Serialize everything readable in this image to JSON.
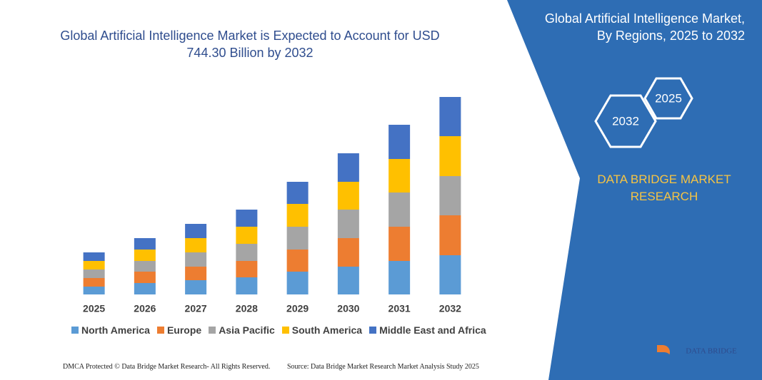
{
  "chart_data": {
    "type": "bar",
    "stacked": true,
    "title": "Global Artificial Intelligence Market is Expected to Account for USD 744.30 Billion by 2032",
    "categories": [
      "2025",
      "2026",
      "2027",
      "2028",
      "2029",
      "2030",
      "2031",
      "2032"
    ],
    "series": [
      {
        "name": "North America",
        "color": "#5b9bd5",
        "values": [
          11,
          16,
          20,
          24,
          32,
          39,
          47,
          55
        ]
      },
      {
        "name": "Europe",
        "color": "#ed7d31",
        "values": [
          12,
          16,
          19,
          23,
          31,
          40,
          48,
          56
        ]
      },
      {
        "name": "Asia Pacific",
        "color": "#a5a5a5",
        "values": [
          12,
          15,
          20,
          24,
          32,
          40,
          48,
          55
        ]
      },
      {
        "name": "South America",
        "color": "#ffc000",
        "values": [
          12,
          16,
          20,
          24,
          32,
          39,
          47,
          56
        ]
      },
      {
        "name": "Middle East and Africa",
        "color": "#4472c4",
        "values": [
          12,
          16,
          20,
          24,
          31,
          40,
          48,
          55
        ]
      }
    ],
    "grid": false
  },
  "panel": {
    "title": "Global Artificial Intelligence Market, By Regions, 2025 to 2032",
    "hexagons": [
      "2025",
      "2032"
    ],
    "brand": "DATA BRIDGE MARKET RESEARCH"
  },
  "footer": {
    "left": "DMCA Protected © Data Bridge Market Research-  All Rights Reserved.",
    "right": "Source: Data Bridge Market Research  Market Analysis Study 2025",
    "logo": "DATA BRIDGE"
  }
}
